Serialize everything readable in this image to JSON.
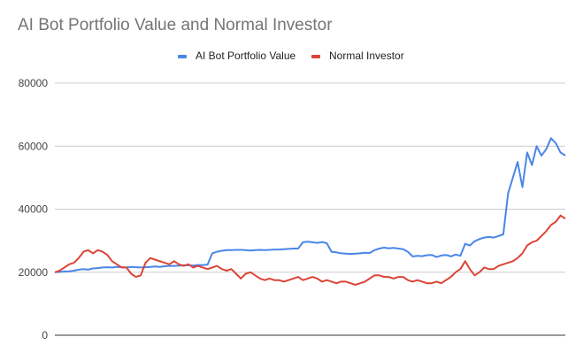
{
  "chart_data": {
    "type": "line",
    "title": "AI Bot Portfolio Value and Normal Investor",
    "xlabel": "",
    "ylabel": "",
    "ylim": [
      0,
      80000
    ],
    "yticks": [
      0,
      20000,
      40000,
      60000,
      80000
    ],
    "grid": true,
    "legend_position": "top",
    "series": [
      {
        "name": "AI Bot Portfolio Value",
        "color": "#4a86e8",
        "values": [
          20000,
          20100,
          20200,
          20300,
          20500,
          20800,
          21000,
          20800,
          21200,
          21300,
          21500,
          21600,
          21500,
          21700,
          21600,
          21500,
          21700,
          21600,
          21500,
          21600,
          21700,
          21800,
          21700,
          21900,
          22000,
          22000,
          22100,
          22200,
          22200,
          22100,
          22300,
          22300,
          22400,
          26000,
          26500,
          26800,
          27000,
          27000,
          27100,
          27100,
          27000,
          26900,
          27000,
          27100,
          27000,
          27100,
          27200,
          27200,
          27300,
          27400,
          27500,
          27500,
          29500,
          29700,
          29500,
          29300,
          29600,
          29200,
          26500,
          26300,
          26000,
          25900,
          25800,
          25900,
          26000,
          26200,
          26100,
          27000,
          27500,
          27800,
          27600,
          27700,
          27500,
          27300,
          26500,
          25000,
          25200,
          25100,
          25400,
          25500,
          24800,
          25300,
          25500,
          25000,
          25600,
          25200,
          29000,
          28500,
          29800,
          30500,
          31000,
          31200,
          31000,
          31500,
          32000,
          45000,
          50000,
          55000,
          47000,
          58000,
          54000,
          60000,
          57000,
          59000,
          62500,
          61000,
          58000,
          57000
        ]
      },
      {
        "name": "Normal Investor",
        "color": "#db4437",
        "values": [
          20000,
          20500,
          21500,
          22500,
          23000,
          24500,
          26500,
          27000,
          26000,
          27000,
          26500,
          25500,
          23500,
          22500,
          21500,
          21500,
          19500,
          18500,
          19000,
          23000,
          24500,
          24000,
          23500,
          23000,
          22500,
          23500,
          22500,
          22000,
          22500,
          21500,
          22000,
          21500,
          21000,
          21500,
          22000,
          21000,
          20500,
          21000,
          19500,
          18000,
          19500,
          20000,
          19000,
          18000,
          17500,
          18000,
          17500,
          17500,
          17000,
          17500,
          18000,
          18500,
          17500,
          18000,
          18500,
          18000,
          17000,
          17500,
          17000,
          16500,
          17000,
          17000,
          16500,
          16000,
          16500,
          17000,
          18000,
          19000,
          19000,
          18500,
          18500,
          18000,
          18500,
          18500,
          17500,
          17000,
          17500,
          17000,
          16500,
          16500,
          17000,
          16500,
          17500,
          18500,
          20000,
          21000,
          23500,
          21000,
          19000,
          20000,
          21500,
          21000,
          21000,
          22000,
          22500,
          23000,
          23500,
          24500,
          26000,
          28500,
          29500,
          30000,
          31500,
          33000,
          35000,
          36000,
          38000,
          37000
        ]
      }
    ]
  }
}
